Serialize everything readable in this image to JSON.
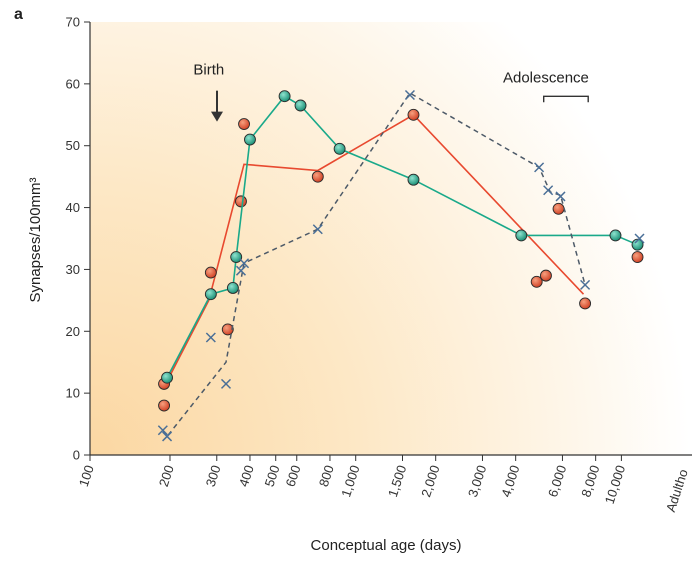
{
  "panel_label": "a",
  "chart_data": {
    "type": "line",
    "xlabel": "Conceptual age (days)",
    "ylabel": "Synapses/100mm³",
    "x_scale": "log",
    "xlim": [
      100,
      12000
    ],
    "ylim": [
      0,
      70
    ],
    "x_ticks": [
      100,
      200,
      300,
      400,
      500,
      600,
      800,
      1000,
      1500,
      2000,
      3000,
      4000,
      6000,
      8000,
      10000
    ],
    "x_tick_labels": [
      "100",
      "200",
      "300",
      "400",
      "500",
      "600",
      "800",
      "1,000",
      "1,500",
      "2,000",
      "3,000",
      "4,000",
      "6,000",
      "8,000",
      "10,000"
    ],
    "extra_x_label": "Adultho",
    "y_ticks": [
      0,
      10,
      20,
      30,
      40,
      50,
      60,
      70
    ],
    "y_tick_labels": [
      "0",
      "10",
      "20",
      "30",
      "40",
      "50",
      "60",
      "70"
    ],
    "colors": {
      "red": "#e8492f",
      "teal": "#1aa98a",
      "cross": "#4a6f97"
    },
    "series": [
      {
        "style": "red",
        "line": [
          [
            190,
            11
          ],
          [
            280,
            25
          ],
          [
            380,
            47
          ],
          [
            720,
            46
          ],
          [
            1650,
            55
          ],
          [
            7200,
            26
          ]
        ],
        "points": [
          [
            190,
            11.5
          ],
          [
            190,
            8
          ],
          [
            285,
            29.5
          ],
          [
            330,
            20.3
          ],
          [
            370,
            41
          ],
          [
            380,
            53.5
          ],
          [
            720,
            45
          ],
          [
            1650,
            55
          ],
          [
            4800,
            28
          ],
          [
            5200,
            29
          ],
          [
            5800,
            39.8
          ],
          [
            7300,
            24.5
          ],
          [
            11500,
            32
          ]
        ]
      },
      {
        "style": "teal",
        "line": [
          [
            195,
            12.5
          ],
          [
            285,
            26
          ],
          [
            345,
            27
          ],
          [
            355,
            32
          ],
          [
            400,
            51
          ],
          [
            540,
            58
          ],
          [
            620,
            56.5
          ],
          [
            870,
            49.5
          ],
          [
            1650,
            44.5
          ],
          [
            4200,
            35.5
          ],
          [
            9500,
            35.5
          ],
          [
            11500,
            34
          ]
        ],
        "points": [
          [
            195,
            12.5
          ],
          [
            285,
            26
          ],
          [
            345,
            27
          ],
          [
            355,
            32
          ],
          [
            400,
            51
          ],
          [
            540,
            58
          ],
          [
            620,
            56.5
          ],
          [
            870,
            49.5
          ],
          [
            1650,
            44.5
          ],
          [
            4200,
            35.5
          ],
          [
            9500,
            35.5
          ],
          [
            11500,
            34
          ]
        ]
      },
      {
        "style": "cross",
        "line": [
          [
            188,
            4
          ],
          [
            195,
            3
          ],
          [
            325,
            15
          ],
          [
            380,
            31
          ],
          [
            720,
            36.5
          ],
          [
            1600,
            58.5
          ],
          [
            4900,
            46.5
          ],
          [
            5400,
            42.5
          ],
          [
            5900,
            42
          ],
          [
            7300,
            27.5
          ]
        ],
        "points": [
          [
            188,
            4
          ],
          [
            195,
            3
          ],
          [
            285,
            19
          ],
          [
            325,
            11.5
          ],
          [
            370,
            29.8
          ],
          [
            380,
            31
          ],
          [
            720,
            36.5
          ],
          [
            1600,
            58.2
          ],
          [
            4900,
            46.5
          ],
          [
            5300,
            42.8
          ],
          [
            5900,
            41.8
          ],
          [
            7300,
            27.5
          ],
          [
            11700,
            35
          ]
        ]
      }
    ],
    "annotations": [
      {
        "text": "Birth",
        "x": 280,
        "y": 61,
        "marker": "down-arrow"
      },
      {
        "text": "Adolescence",
        "x": 5200,
        "y": 63,
        "marker": "bracket",
        "range": [
          5100,
          7500
        ]
      }
    ]
  }
}
